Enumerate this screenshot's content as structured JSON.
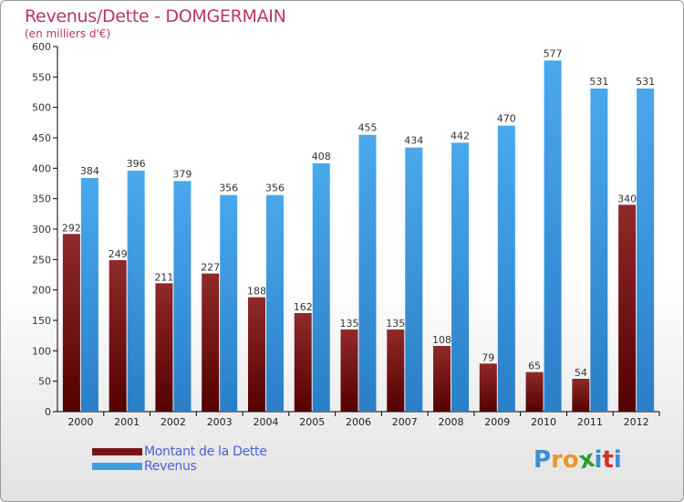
{
  "title": "Revenus/Dette - DOMGERMAIN",
  "subtitle": "(en milliers d'€)",
  "legend": {
    "debt_label": "Montant de la Dette",
    "revenue_label": "Revenus"
  },
  "logo": {
    "text": "Proxiti"
  },
  "colors": {
    "debt": "#7a1414",
    "revenue": "#3d9ee6",
    "title": "#b5366a",
    "legend_text": "#4a63d8"
  },
  "chart_data": {
    "type": "bar",
    "categories": [
      "2000",
      "2001",
      "2002",
      "2003",
      "2004",
      "2005",
      "2006",
      "2007",
      "2008",
      "2009",
      "2010",
      "2011",
      "2012"
    ],
    "series": [
      {
        "name": "Montant de la Dette",
        "values": [
          292,
          249,
          211,
          227,
          188,
          162,
          135,
          135,
          108,
          79,
          65,
          54,
          340
        ]
      },
      {
        "name": "Revenus",
        "values": [
          384,
          396,
          379,
          356,
          356,
          408,
          455,
          434,
          442,
          470,
          577,
          531,
          531
        ]
      }
    ],
    "ylim": [
      0,
      600
    ],
    "yticks": [
      0,
      50,
      100,
      150,
      200,
      250,
      300,
      350,
      400,
      450,
      500,
      550,
      600
    ],
    "grid": false,
    "legend_position": "bottom-left"
  }
}
